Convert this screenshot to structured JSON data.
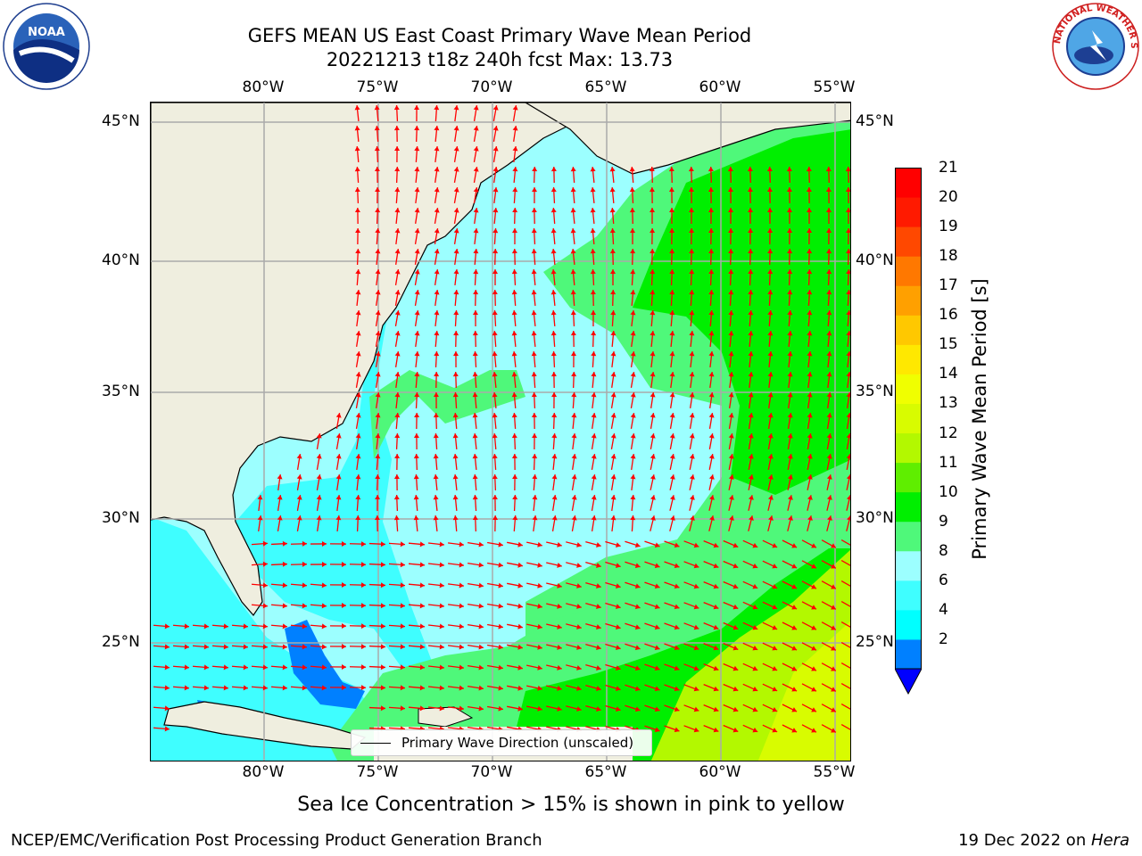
{
  "header": {
    "title_line1": "GEFS MEAN US East Coast Primary Wave Mean Period",
    "title_line2": "20221213 t18z 240h fcst   Max: 13.73"
  },
  "logos": {
    "left": "NOAA",
    "right": "NATIONAL WEATHER SERVICE"
  },
  "map": {
    "lon_ticks_top": [
      "80°W",
      "75°W",
      "70°W",
      "65°W",
      "60°W",
      "55°W"
    ],
    "lon_ticks_bottom": [
      "80°W",
      "75°W",
      "70°W",
      "65°W",
      "60°W",
      "55°W"
    ],
    "lat_ticks_left": [
      "45°N",
      "40°N",
      "35°N",
      "30°N",
      "25°N"
    ],
    "lat_ticks_right": [
      "45°N",
      "40°N",
      "35°N",
      "30°N",
      "25°N"
    ],
    "legend_label": "Primary Wave Direction (unscaled)",
    "land_color": "#efeedf",
    "arrow_color": "#ff0000"
  },
  "colorbar": {
    "title": "Primary Wave Mean Period [s]",
    "tick_labels": [
      "21",
      "20",
      "19",
      "18",
      "17",
      "16",
      "15",
      "14",
      "13",
      "12",
      "11",
      "10",
      "9",
      "8",
      "6",
      "4",
      "2"
    ],
    "colors": [
      "#0000ff",
      "#0080ff",
      "#00ffff",
      "#3ffeff",
      "#9cffff",
      "#4ff87a",
      "#00ef00",
      "#5fee00",
      "#b3f800",
      "#d8fc00",
      "#f0ff00",
      "#ffe800",
      "#ffc800",
      "#ffa000",
      "#ff7800",
      "#ff4800",
      "#ff1a00",
      "#ff0000"
    ]
  },
  "footer": {
    "subtitle": "Sea Ice Concentration > 15% is shown in pink to yellow",
    "left": "NCEP/EMC/Verification Post Processing Product Generation Branch",
    "right_date": "19 Dec 2022 on ",
    "right_host": "Hera"
  }
}
